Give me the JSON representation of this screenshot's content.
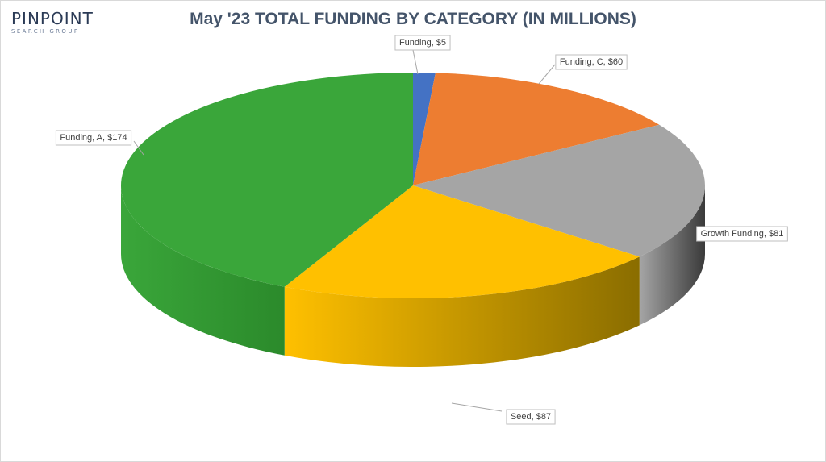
{
  "logo": {
    "main": "PINPOINT",
    "sub": "SEARCH GROUP"
  },
  "chart_data": {
    "type": "pie",
    "title": "May '23 TOTAL FUNDING BY CATEGORY (IN MILLIONS)",
    "categories": [
      "Funding",
      "Funding, C",
      "Growth Funding",
      "Seed",
      "Funding, A"
    ],
    "values": [
      5,
      60,
      81,
      87,
      174
    ],
    "colors": [
      "#4472c4",
      "#ed7d31",
      "#a5a5a5",
      "#ffc000",
      "#3aa63a"
    ],
    "side_colors": [
      "#2f5496",
      "#b85b1e",
      "#3a3a3a",
      "#8a6d00",
      "#2b8a2b"
    ],
    "labels": [
      "Funding, $5",
      "Funding, C, $60",
      "Growth Funding, $81",
      "Seed, $87",
      "Funding, A, $174"
    ],
    "legend": "none",
    "style": "3d"
  }
}
